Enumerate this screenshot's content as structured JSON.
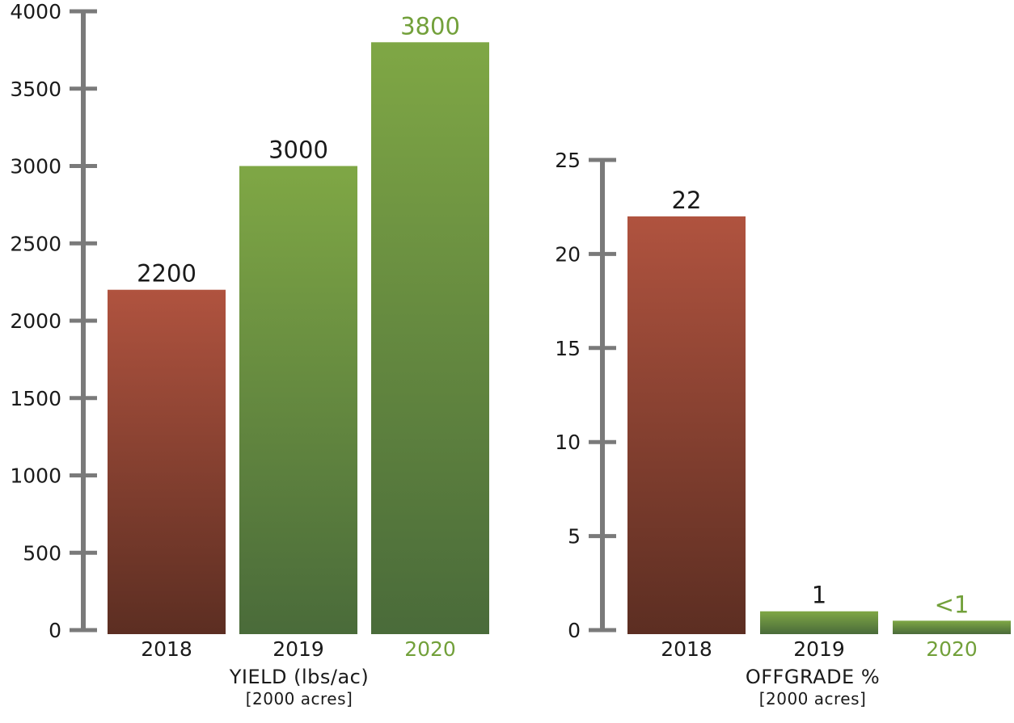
{
  "colors": {
    "axis": "#7a7a7a",
    "text": "#1a1a1a",
    "highlight": "#72a03a",
    "red_top": "#b0533f",
    "red_bottom": "#5c2e22",
    "green_top": "#7fa745",
    "green_bottom": "#4a6b3a"
  },
  "chart_data": [
    {
      "type": "bar",
      "categories": [
        "2018",
        "2019",
        "2020"
      ],
      "values": [
        2200,
        3000,
        3800
      ],
      "data_labels": [
        "2200",
        "3000",
        "3800"
      ],
      "bar_colors": [
        "red",
        "green",
        "green"
      ],
      "highlight_category": "2020",
      "xlabel": "YIELD (lbs/ac)",
      "xlabel_sub": "[2000 acres]",
      "ylabel": "",
      "ylim": [
        0,
        4000
      ],
      "yticks": [
        0,
        500,
        1000,
        1500,
        2000,
        2500,
        3000,
        3500,
        4000
      ],
      "grid": false
    },
    {
      "type": "bar",
      "categories": [
        "2018",
        "2019",
        "2020"
      ],
      "values": [
        22,
        1,
        0.5
      ],
      "data_labels": [
        "22",
        "1",
        "<1"
      ],
      "bar_colors": [
        "red",
        "green",
        "green"
      ],
      "highlight_category": "2020",
      "xlabel": "OFFGRADE %",
      "xlabel_sub": "[2000 acres]",
      "ylabel": "",
      "ylim": [
        0,
        25
      ],
      "yticks": [
        0,
        5,
        10,
        15,
        20,
        25
      ],
      "grid": false
    }
  ]
}
